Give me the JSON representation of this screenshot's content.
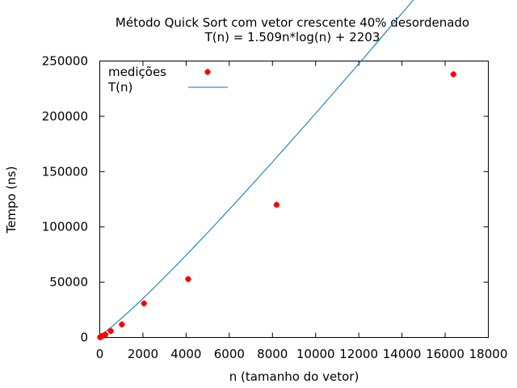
{
  "chart_data": {
    "type": "scatter",
    "title": "Método Quick Sort com vetor crescente 40% desordenado",
    "subtitle": "T(n) = 1.509n*log(n) + 2203",
    "xlabel": "n (tamanho do vetor)",
    "ylabel": "Tempo (ns)",
    "xlim": [
      0,
      18000
    ],
    "ylim": [
      0,
      250000
    ],
    "x_ticks": [
      0,
      2000,
      4000,
      6000,
      8000,
      10000,
      12000,
      14000,
      16000,
      18000
    ],
    "y_ticks": [
      0,
      50000,
      100000,
      150000,
      200000,
      250000
    ],
    "grid": false,
    "legend_position": "top-left",
    "series": [
      {
        "name": "medições",
        "kind": "points",
        "color": "#ff0000",
        "x": [
          16,
          32,
          64,
          128,
          256,
          512,
          1024,
          2048,
          4096,
          8192,
          16384
        ],
        "y": [
          300,
          500,
          800,
          1500,
          2500,
          5800,
          11800,
          30800,
          52800,
          120000,
          238000
        ]
      },
      {
        "name": "T(n)",
        "kind": "line",
        "color": "#0072bd",
        "formula": {
          "a": 1.509,
          "b": 2203
        },
        "x": [
          0,
          16,
          64,
          128,
          256,
          512,
          1024,
          2048,
          4096,
          8192,
          12288,
          16384
        ],
        "y": [
          2203,
          2300,
          2790,
          3560,
          5290,
          9140,
          17600,
          36000,
          75900,
          162000,
          252000,
          342000
        ]
      }
    ]
  }
}
